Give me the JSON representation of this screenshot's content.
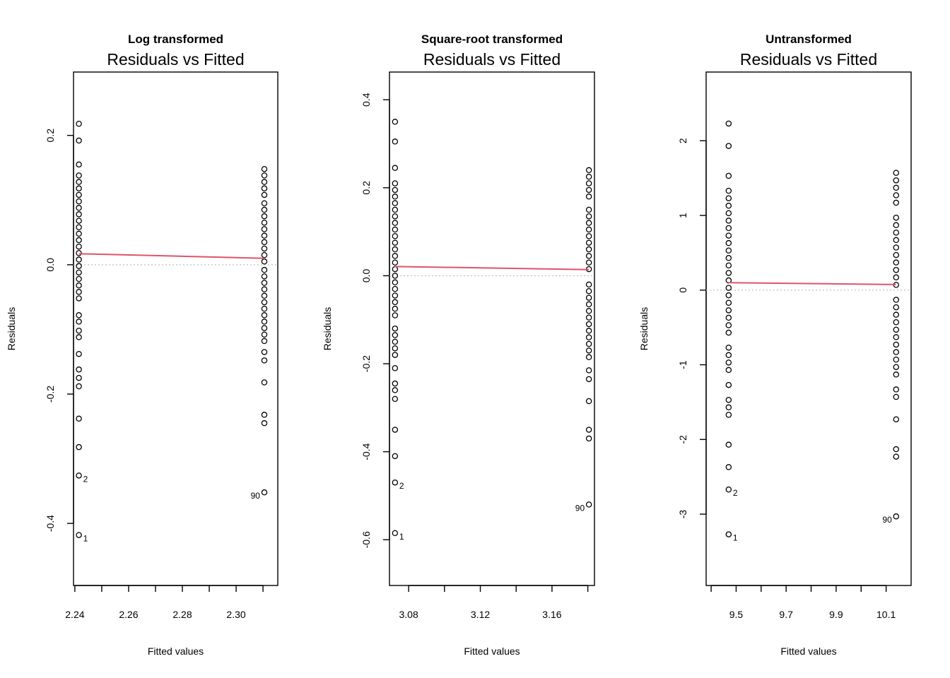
{
  "chart_data": [
    {
      "type": "scatter",
      "supertitle": "Log transformed",
      "title": "Residuals vs Fitted",
      "xlabel": "Fitted values",
      "ylabel": "Residuals",
      "xlim": [
        2.2395,
        2.3155
      ],
      "ylim": [
        -0.496,
        0.298
      ],
      "xticks": [
        2.24,
        2.25,
        2.26,
        2.27,
        2.28,
        2.29,
        2.3,
        2.31
      ],
      "xtick_labels": [
        {
          "value": 2.24,
          "label": "2.24"
        },
        {
          "value": 2.26,
          "label": "2.26"
        },
        {
          "value": 2.28,
          "label": "2.28"
        },
        {
          "value": 2.3,
          "label": "2.30"
        }
      ],
      "yticks": [
        {
          "value": 0.2,
          "label": "0.2"
        },
        {
          "value": 0.0,
          "label": "0.0"
        },
        {
          "value": -0.2,
          "label": "-0.2"
        },
        {
          "value": -0.4,
          "label": "-0.4"
        }
      ],
      "groups": [
        {
          "x": 2.2415,
          "y": [
            0.218,
            0.192,
            0.155,
            0.138,
            0.128,
            0.118,
            0.108,
            0.098,
            0.088,
            0.078,
            0.068,
            0.058,
            0.048,
            0.038,
            0.028,
            0.018,
            0.008,
            -0.002,
            -0.012,
            -0.022,
            -0.032,
            -0.042,
            -0.052,
            -0.078,
            -0.088,
            -0.102,
            -0.112,
            -0.138,
            -0.162,
            -0.175,
            -0.188,
            -0.238,
            -0.282,
            -0.326,
            -0.418
          ]
        },
        {
          "x": 2.3105,
          "y": [
            0.148,
            0.138,
            0.128,
            0.118,
            0.108,
            0.095,
            0.085,
            0.075,
            0.065,
            0.055,
            0.045,
            0.035,
            0.025,
            0.015,
            0.005,
            -0.008,
            -0.018,
            -0.028,
            -0.038,
            -0.048,
            -0.058,
            -0.068,
            -0.078,
            -0.088,
            -0.098,
            -0.108,
            -0.118,
            -0.135,
            -0.148,
            -0.182,
            -0.232,
            -0.245,
            -0.352
          ]
        }
      ],
      "smooth": [
        [
          2.2415,
          0.017
        ],
        [
          2.3105,
          0.01
        ]
      ],
      "labeled_points": [
        {
          "label": "2",
          "x": 2.2415,
          "y": -0.326,
          "side": "right"
        },
        {
          "label": "1",
          "x": 2.2415,
          "y": -0.418,
          "side": "right"
        },
        {
          "label": "90",
          "x": 2.3105,
          "y": -0.352,
          "side": "left"
        }
      ]
    },
    {
      "type": "scatter",
      "supertitle": "Square-root transformed",
      "title": "Residuals vs Fitted",
      "xlabel": "Fitted values",
      "ylabel": "Residuals",
      "xlim": [
        3.0693,
        3.1837
      ],
      "ylim": [
        -0.704,
        0.463
      ],
      "xticks": [
        3.08,
        3.1,
        3.12,
        3.14,
        3.16,
        3.18
      ],
      "xtick_labels": [
        {
          "value": 3.08,
          "label": "3.08"
        },
        {
          "value": 3.12,
          "label": "3.12"
        },
        {
          "value": 3.16,
          "label": "3.16"
        }
      ],
      "yticks": [
        {
          "value": 0.4,
          "label": "0.4"
        },
        {
          "value": 0.2,
          "label": "0.2"
        },
        {
          "value": 0.0,
          "label": "0.0"
        },
        {
          "value": -0.2,
          "label": "-0.2"
        },
        {
          "value": -0.4,
          "label": "-0.4"
        },
        {
          "value": -0.6,
          "label": "-0.6"
        }
      ],
      "groups": [
        {
          "x": 3.0724,
          "y": [
            0.35,
            0.305,
            0.245,
            0.21,
            0.195,
            0.18,
            0.165,
            0.15,
            0.135,
            0.12,
            0.105,
            0.09,
            0.075,
            0.06,
            0.045,
            0.03,
            0.015,
            0.0,
            -0.015,
            -0.03,
            -0.045,
            -0.06,
            -0.075,
            -0.09,
            -0.12,
            -0.135,
            -0.15,
            -0.165,
            -0.18,
            -0.21,
            -0.245,
            -0.26,
            -0.28,
            -0.35,
            -0.41,
            -0.47,
            -0.585
          ]
        },
        {
          "x": 3.1806,
          "y": [
            0.24,
            0.225,
            0.21,
            0.195,
            0.18,
            0.15,
            0.135,
            0.12,
            0.105,
            0.09,
            0.075,
            0.06,
            0.045,
            0.03,
            0.015,
            -0.02,
            -0.035,
            -0.05,
            -0.065,
            -0.08,
            -0.095,
            -0.11,
            -0.125,
            -0.14,
            -0.155,
            -0.17,
            -0.185,
            -0.215,
            -0.235,
            -0.285,
            -0.35,
            -0.37,
            -0.52
          ]
        }
      ],
      "smooth": [
        [
          3.0724,
          0.021
        ],
        [
          3.1806,
          0.014
        ]
      ],
      "labeled_points": [
        {
          "label": "2",
          "x": 3.0724,
          "y": -0.47,
          "side": "right"
        },
        {
          "label": "1",
          "x": 3.0724,
          "y": -0.585,
          "side": "right"
        },
        {
          "label": "90",
          "x": 3.1806,
          "y": -0.52,
          "side": "left"
        }
      ]
    },
    {
      "type": "scatter",
      "supertitle": "Untransformed",
      "title": "Residuals vs Fitted",
      "xlabel": "Fitted values",
      "ylabel": "Residuals",
      "xlim": [
        9.38,
        10.2
      ],
      "ylim": [
        -3.955,
        2.92
      ],
      "xticks": [
        9.4,
        9.5,
        9.6,
        9.7,
        9.8,
        9.9,
        10.0,
        10.1
      ],
      "xtick_labels": [
        {
          "value": 9.5,
          "label": "9.5"
        },
        {
          "value": 9.7,
          "label": "9.7"
        },
        {
          "value": 9.9,
          "label": "9.9"
        },
        {
          "value": 10.1,
          "label": "10.1"
        }
      ],
      "yticks": [
        {
          "value": 2,
          "label": "2"
        },
        {
          "value": 1,
          "label": "1"
        },
        {
          "value": 0,
          "label": "0"
        },
        {
          "value": -1,
          "label": "-1"
        },
        {
          "value": -2,
          "label": "-2"
        },
        {
          "value": -3,
          "label": "-3"
        }
      ],
      "groups": [
        {
          "x": 9.47,
          "y": [
            2.23,
            1.93,
            1.53,
            1.33,
            1.23,
            1.13,
            1.03,
            0.93,
            0.83,
            0.73,
            0.63,
            0.53,
            0.43,
            0.33,
            0.23,
            0.13,
            0.03,
            -0.07,
            -0.17,
            -0.27,
            -0.37,
            -0.47,
            -0.57,
            -0.77,
            -0.87,
            -0.97,
            -1.07,
            -1.27,
            -1.47,
            -1.57,
            -1.67,
            -2.07,
            -2.37,
            -2.67,
            -3.27
          ]
        },
        {
          "x": 10.14,
          "y": [
            1.57,
            1.47,
            1.37,
            1.27,
            1.17,
            0.97,
            0.87,
            0.77,
            0.67,
            0.57,
            0.47,
            0.37,
            0.27,
            0.17,
            0.07,
            -0.13,
            -0.23,
            -0.33,
            -0.43,
            -0.53,
            -0.63,
            -0.73,
            -0.83,
            -0.93,
            -1.03,
            -1.13,
            -1.33,
            -1.43,
            -1.73,
            -2.13,
            -2.23,
            -3.03
          ]
        }
      ],
      "smooth": [
        [
          9.47,
          0.1
        ],
        [
          10.14,
          0.075
        ]
      ],
      "labeled_points": [
        {
          "label": "2",
          "x": 9.47,
          "y": -2.67,
          "side": "right"
        },
        {
          "label": "1",
          "x": 9.47,
          "y": -3.27,
          "side": "right"
        },
        {
          "label": "90",
          "x": 10.14,
          "y": -3.03,
          "side": "left"
        }
      ]
    }
  ],
  "colors": {
    "points": "#000000",
    "smooth": "#DF536B",
    "reference": "#BEBEBE",
    "axis": "#000000"
  }
}
